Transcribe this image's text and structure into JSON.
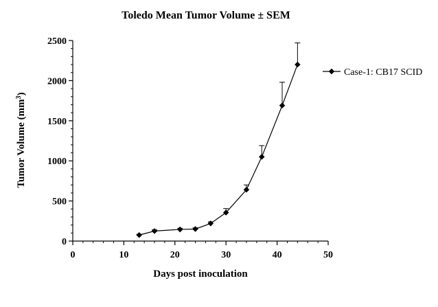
{
  "chart_data": {
    "type": "line",
    "title": "Toledo Mean Tumor Volume ± SEM",
    "xlabel": "Days post inoculation",
    "ylabel": "Tumor Volume (mm",
    "ylabel_superscript": "3",
    "ylabel_suffix": ")",
    "xlim": [
      0,
      50
    ],
    "ylim": [
      0,
      2500
    ],
    "x_ticks": [
      0,
      10,
      20,
      30,
      40,
      50
    ],
    "y_ticks": [
      0,
      500,
      1000,
      1500,
      2000,
      2500
    ],
    "x_minor_step": 2,
    "y_minor_step": 100,
    "grid": false,
    "legend_position": "right",
    "series": [
      {
        "name": "Case-1: CB17 SCID",
        "marker": "diamond",
        "color": "#000000",
        "x": [
          13,
          16,
          21,
          24,
          27,
          30,
          34,
          37,
          41,
          44
        ],
        "y": [
          75,
          125,
          145,
          150,
          220,
          355,
          640,
          1050,
          1690,
          2200
        ],
        "sem": [
          10,
          15,
          15,
          15,
          20,
          50,
          60,
          140,
          290,
          270
        ]
      }
    ]
  }
}
